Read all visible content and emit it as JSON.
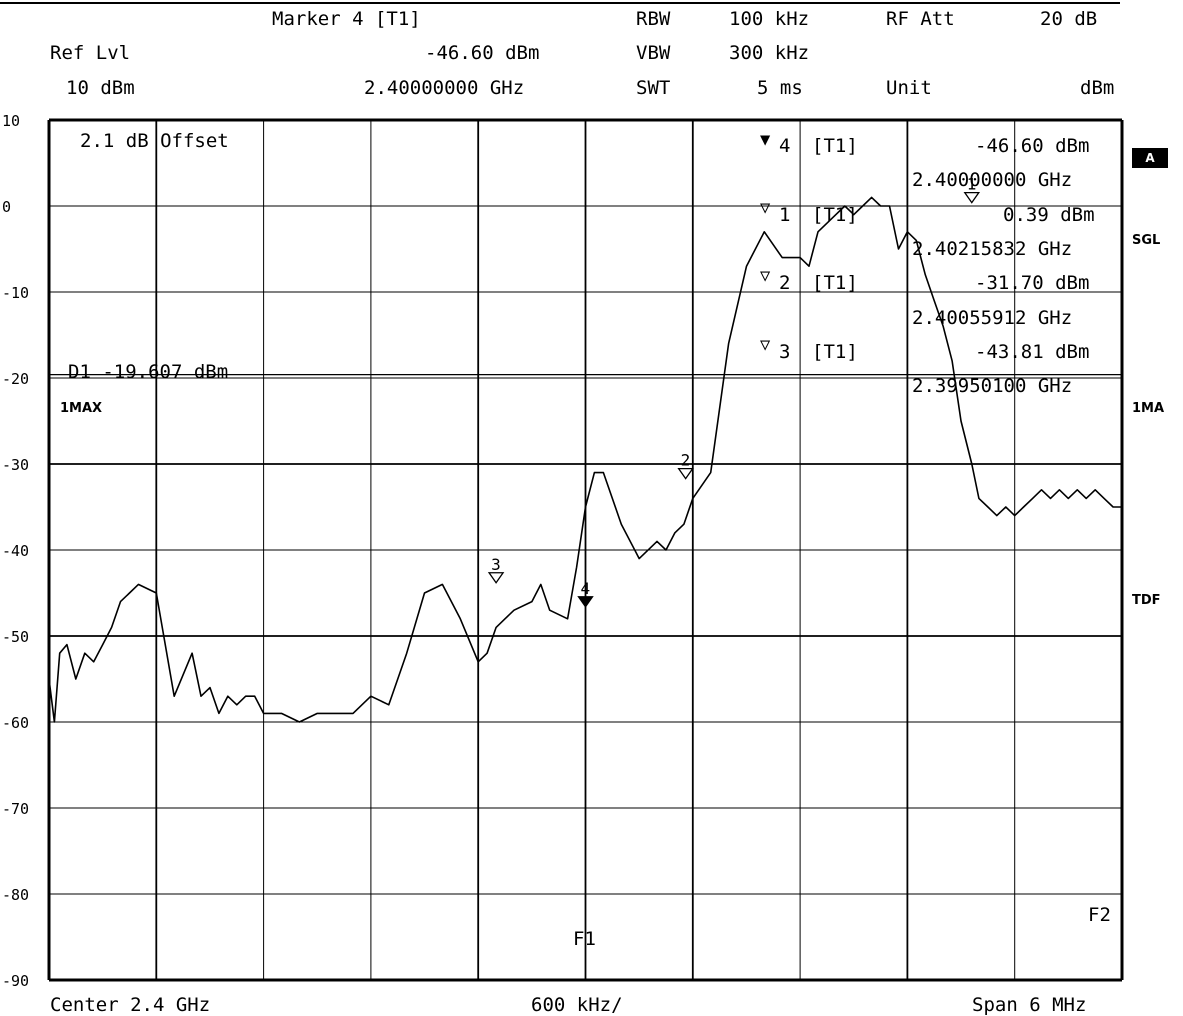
{
  "header": {
    "marker_title": "Marker 4 [T1]",
    "ref_lvl_label": "Ref Lvl",
    "ref_lvl_value": "10 dBm",
    "marker_level": "-46.60 dBm",
    "marker_freq": "2.40000000 GHz",
    "rbw_label": "RBW",
    "rbw_value": "100 kHz",
    "vbw_label": "VBW",
    "vbw_value": "300 kHz",
    "swt_label": "SWT",
    "swt_value": "5 ms",
    "rfatt_label": "RF Att",
    "rfatt_value": "20 dB",
    "unit_label": "Unit",
    "unit_value": "dBm"
  },
  "side_labels": {
    "a_badge": "A",
    "sgl": "SGL",
    "ma1": "1MA",
    "tdf": "TDF",
    "max1": "1MAX"
  },
  "footer": {
    "center": "Center 2.4 GHz",
    "per_div": "600 kHz/",
    "span": "Span 6 MHz"
  },
  "annotations": {
    "offset": "2.1 dB Offset",
    "d1_line": "D1 -19.607 dBm",
    "f1": "F1",
    "f2": "F2"
  },
  "marker_table": [
    {
      "symbol": "▼",
      "id": "4",
      "trace": "[T1]",
      "level": "-46.60 dBm",
      "freq": "2.40000000 GHz"
    },
    {
      "symbol": "▽",
      "id": "1",
      "trace": "[T1]",
      "level": "0.39 dBm",
      "freq": "2.40215832 GHz"
    },
    {
      "symbol": "▽",
      "id": "2",
      "trace": "[T1]",
      "level": "-31.70 dBm",
      "freq": "2.40055912 GHz"
    },
    {
      "symbol": "▽",
      "id": "3",
      "trace": "[T1]",
      "level": "-43.81 dBm",
      "freq": "2.39950100 GHz"
    }
  ],
  "chart_data": {
    "type": "line",
    "xlim": [
      2.397,
      2.403
    ],
    "ylim": [
      -90,
      10
    ],
    "yticks": [
      10,
      0,
      -10,
      -20,
      -30,
      -40,
      -50,
      -60,
      -70,
      -80,
      -90
    ],
    "grid": true,
    "display_line_d1": -19.607,
    "f1": 2.4,
    "f2": 2.403,
    "series": [
      {
        "x": [
          2.397,
          2.39703,
          2.39706,
          2.3971,
          2.39715,
          2.3972,
          2.39725,
          2.3973,
          2.39735,
          2.3974,
          2.39745,
          2.3975,
          2.3976,
          2.3977,
          2.3978,
          2.39785,
          2.3979,
          2.39795,
          2.398,
          2.39805,
          2.3981,
          2.39815,
          2.3982,
          2.3983,
          2.3984,
          2.3985,
          2.3986,
          2.3987,
          2.3988,
          2.3989,
          2.399,
          2.3991,
          2.3992,
          2.3993,
          2.3994,
          2.39945,
          2.3995,
          2.39955,
          2.3996,
          2.3997,
          2.39975,
          2.3998,
          2.3999,
          2.39995,
          2.4,
          2.40005,
          2.4001,
          2.4002,
          2.4003,
          2.4004,
          2.40045,
          2.4005,
          2.40055,
          2.4006,
          2.4007,
          2.4008,
          2.4009,
          2.401,
          2.4011,
          2.4012,
          2.40125,
          2.4013,
          2.4014,
          2.40145,
          2.4015,
          2.40155,
          2.4016,
          2.40165,
          2.4017,
          2.40175,
          2.4018,
          2.40185,
          2.4019,
          2.40195,
          2.402,
          2.40205,
          2.4021,
          2.40216,
          2.4022,
          2.40225,
          2.4023,
          2.40235,
          2.4024,
          2.40245,
          2.4025,
          2.40255,
          2.4026,
          2.40265,
          2.4027,
          2.40275,
          2.4028,
          2.40285,
          2.4029,
          2.40295,
          2.403
        ],
        "values": [
          -55,
          -60,
          -52,
          -51,
          -55,
          -52,
          -53,
          -51,
          -49,
          -46,
          -45,
          -44,
          -45,
          -57,
          -52,
          -57,
          -56,
          -59,
          -57,
          -58,
          -57,
          -57,
          -59,
          -59,
          -60,
          -59,
          -59,
          -59,
          -57,
          -58,
          -52,
          -45,
          -44,
          -48,
          -53,
          -52,
          -49,
          -48,
          -47,
          -46,
          -44,
          -47,
          -48,
          -42,
          -35,
          -31,
          -31,
          -37,
          -41,
          -39,
          -40,
          -38,
          -37,
          -34,
          -31,
          -16,
          -7,
          -3,
          -6,
          -6,
          -7,
          -3,
          -1,
          0,
          -1,
          0,
          1,
          0,
          0,
          -5,
          -3,
          -4,
          -8,
          -11,
          -14,
          -18,
          -25,
          -30,
          -34,
          -35,
          -36,
          -35,
          -36,
          -35,
          -34,
          -33,
          -34,
          -33,
          -34,
          -33,
          -34,
          -33,
          -34,
          -35,
          -35
        ]
      }
    ],
    "markers": [
      {
        "id": "1",
        "x": 2.40216,
        "y": 0.39
      },
      {
        "id": "2",
        "x": 2.40056,
        "y": -31.7
      },
      {
        "id": "3",
        "x": 2.3995,
        "y": -43.81
      },
      {
        "id": "4",
        "x": 2.4,
        "y": -46.6
      }
    ]
  }
}
